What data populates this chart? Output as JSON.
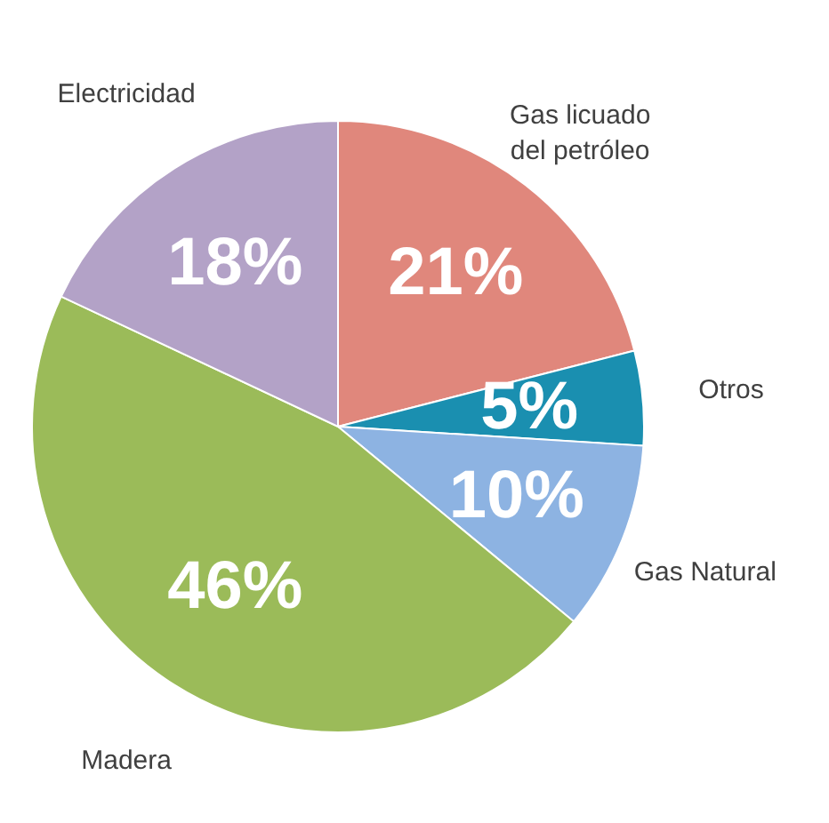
{
  "chart_data": {
    "type": "pie",
    "categories": [
      "Gas licuado del petróleo",
      "Otros",
      "Gas Natural",
      "Madera",
      "Electricidad"
    ],
    "values": [
      21,
      5,
      10,
      46,
      18
    ],
    "value_labels": [
      "21%",
      "5%",
      "10%",
      "46%",
      "18%"
    ],
    "colors": [
      "#e0877c",
      "#1a8fb0",
      "#8db3e2",
      "#9bbb59",
      "#b3a2c7"
    ]
  }
}
